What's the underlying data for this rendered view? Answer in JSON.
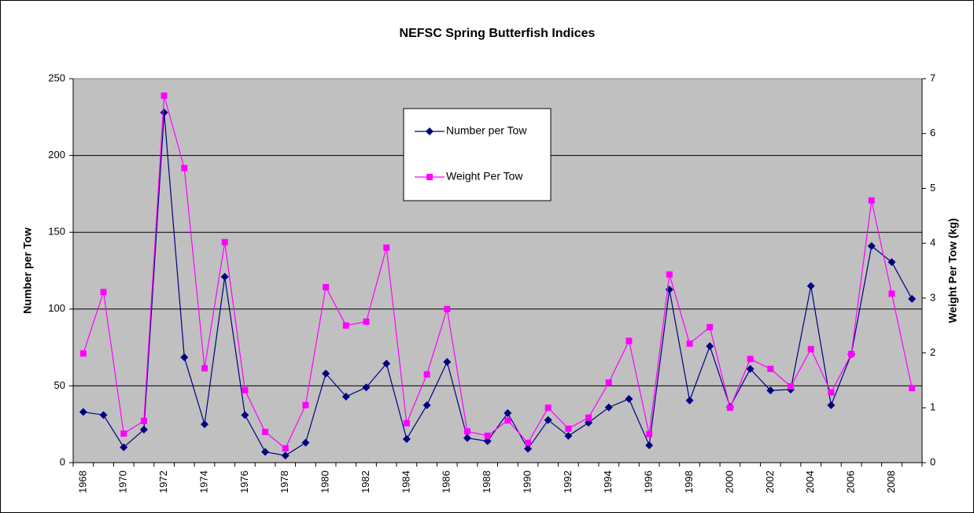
{
  "chart_data": {
    "type": "line",
    "title": "NEFSC Spring Butterfish Indices",
    "categories": [
      "1968",
      null,
      "1970",
      null,
      "1972",
      null,
      "1974",
      null,
      "1976",
      null,
      "1978",
      null,
      "1980",
      null,
      "1982",
      null,
      "1984",
      null,
      "1986",
      null,
      "1988",
      null,
      "1990",
      null,
      "1992",
      null,
      "1994",
      null,
      "1996",
      null,
      "1998",
      null,
      "2000",
      null,
      "2002",
      null,
      "2004",
      null,
      "2006",
      null,
      "2008",
      null
    ],
    "ylabel": "Number per Tow",
    "y2label": "Weight Per Tow (kg)",
    "ylim": [
      0,
      250
    ],
    "yticks": [
      0,
      50,
      100,
      150,
      200,
      250
    ],
    "y2lim": [
      0,
      7
    ],
    "y2ticks": [
      0,
      1,
      2,
      3,
      4,
      5,
      6,
      7
    ],
    "grid": true,
    "legend": "upper center",
    "series": [
      {
        "name": "Number per Tow",
        "color": "#000080",
        "marker": "diamond",
        "values": [
          33,
          31,
          10,
          21.5,
          228,
          68.6,
          25,
          121,
          31,
          7,
          4.6,
          13,
          58,
          43,
          49,
          64.5,
          15.4,
          37.4,
          65.6,
          16,
          14,
          32.3,
          9,
          27.7,
          17.4,
          26,
          36,
          41.5,
          11.3,
          112.7,
          40.5,
          75.8,
          36.4,
          61,
          47,
          47.6,
          115,
          37.4,
          70.7,
          141,
          130.6,
          106.6
        ]
      },
      {
        "name": "Weight Per Tow",
        "color": "#ff00ff",
        "marker": "square",
        "axis": "y2",
        "values": [
          1.99,
          3.11,
          0.53,
          0.76,
          6.69,
          5.37,
          1.72,
          4.02,
          1.32,
          0.56,
          0.26,
          1.05,
          3.2,
          2.5,
          2.57,
          3.92,
          0.72,
          1.61,
          2.8,
          0.57,
          0.49,
          0.77,
          0.36,
          1.0,
          0.62,
          0.82,
          1.46,
          2.22,
          0.52,
          3.43,
          2.17,
          2.47,
          1.0,
          1.89,
          1.71,
          1.39,
          2.07,
          1.28,
          1.98,
          4.78,
          3.08,
          1.36
        ]
      }
    ]
  }
}
